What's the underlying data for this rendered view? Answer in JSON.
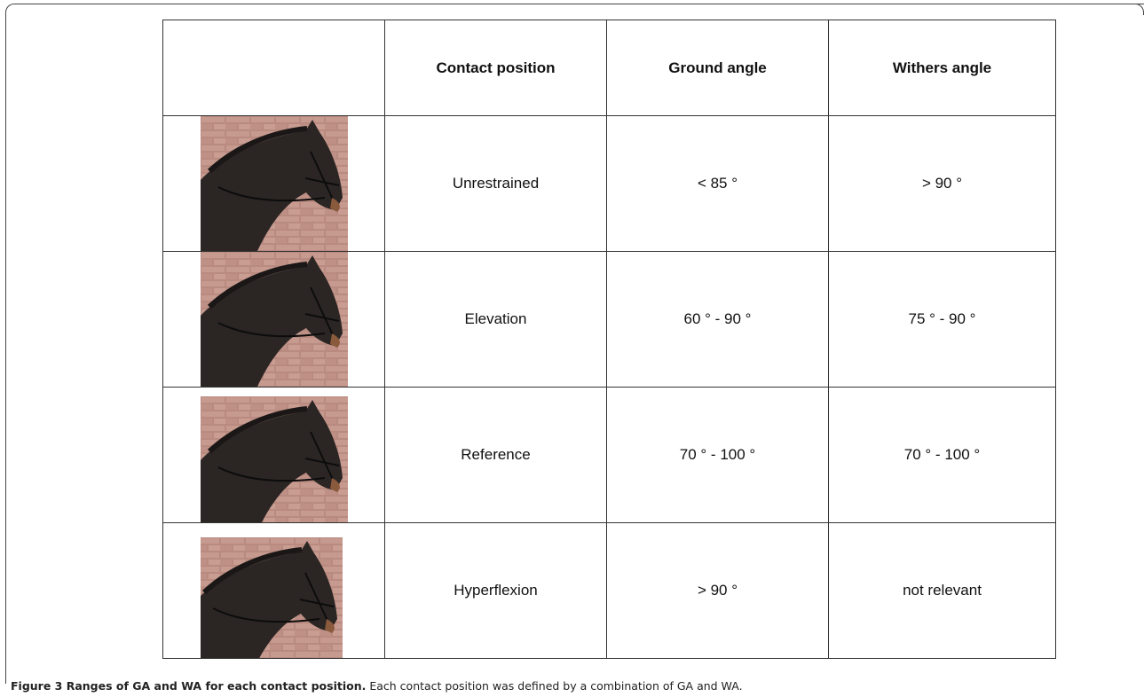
{
  "table": {
    "header": [
      "Contact position",
      "Ground angle",
      "Withers angle"
    ],
    "rows": [
      [
        "Unrestrained",
        "< 85 °",
        "> 90 °"
      ],
      [
        "Elevation",
        "60 ° - 90 °",
        "75 ° - 90 °"
      ],
      [
        "Reference",
        "70 ° - 100 °",
        "70 ° - 100 °"
      ],
      [
        "Hyperflexion",
        "> 90 °",
        "not relevant"
      ]
    ]
  },
  "caption": {
    "title": "Figure 3 Ranges of GA and WA for each contact position.",
    "text": "Each contact position was defined by a combination of GA and WA."
  }
}
